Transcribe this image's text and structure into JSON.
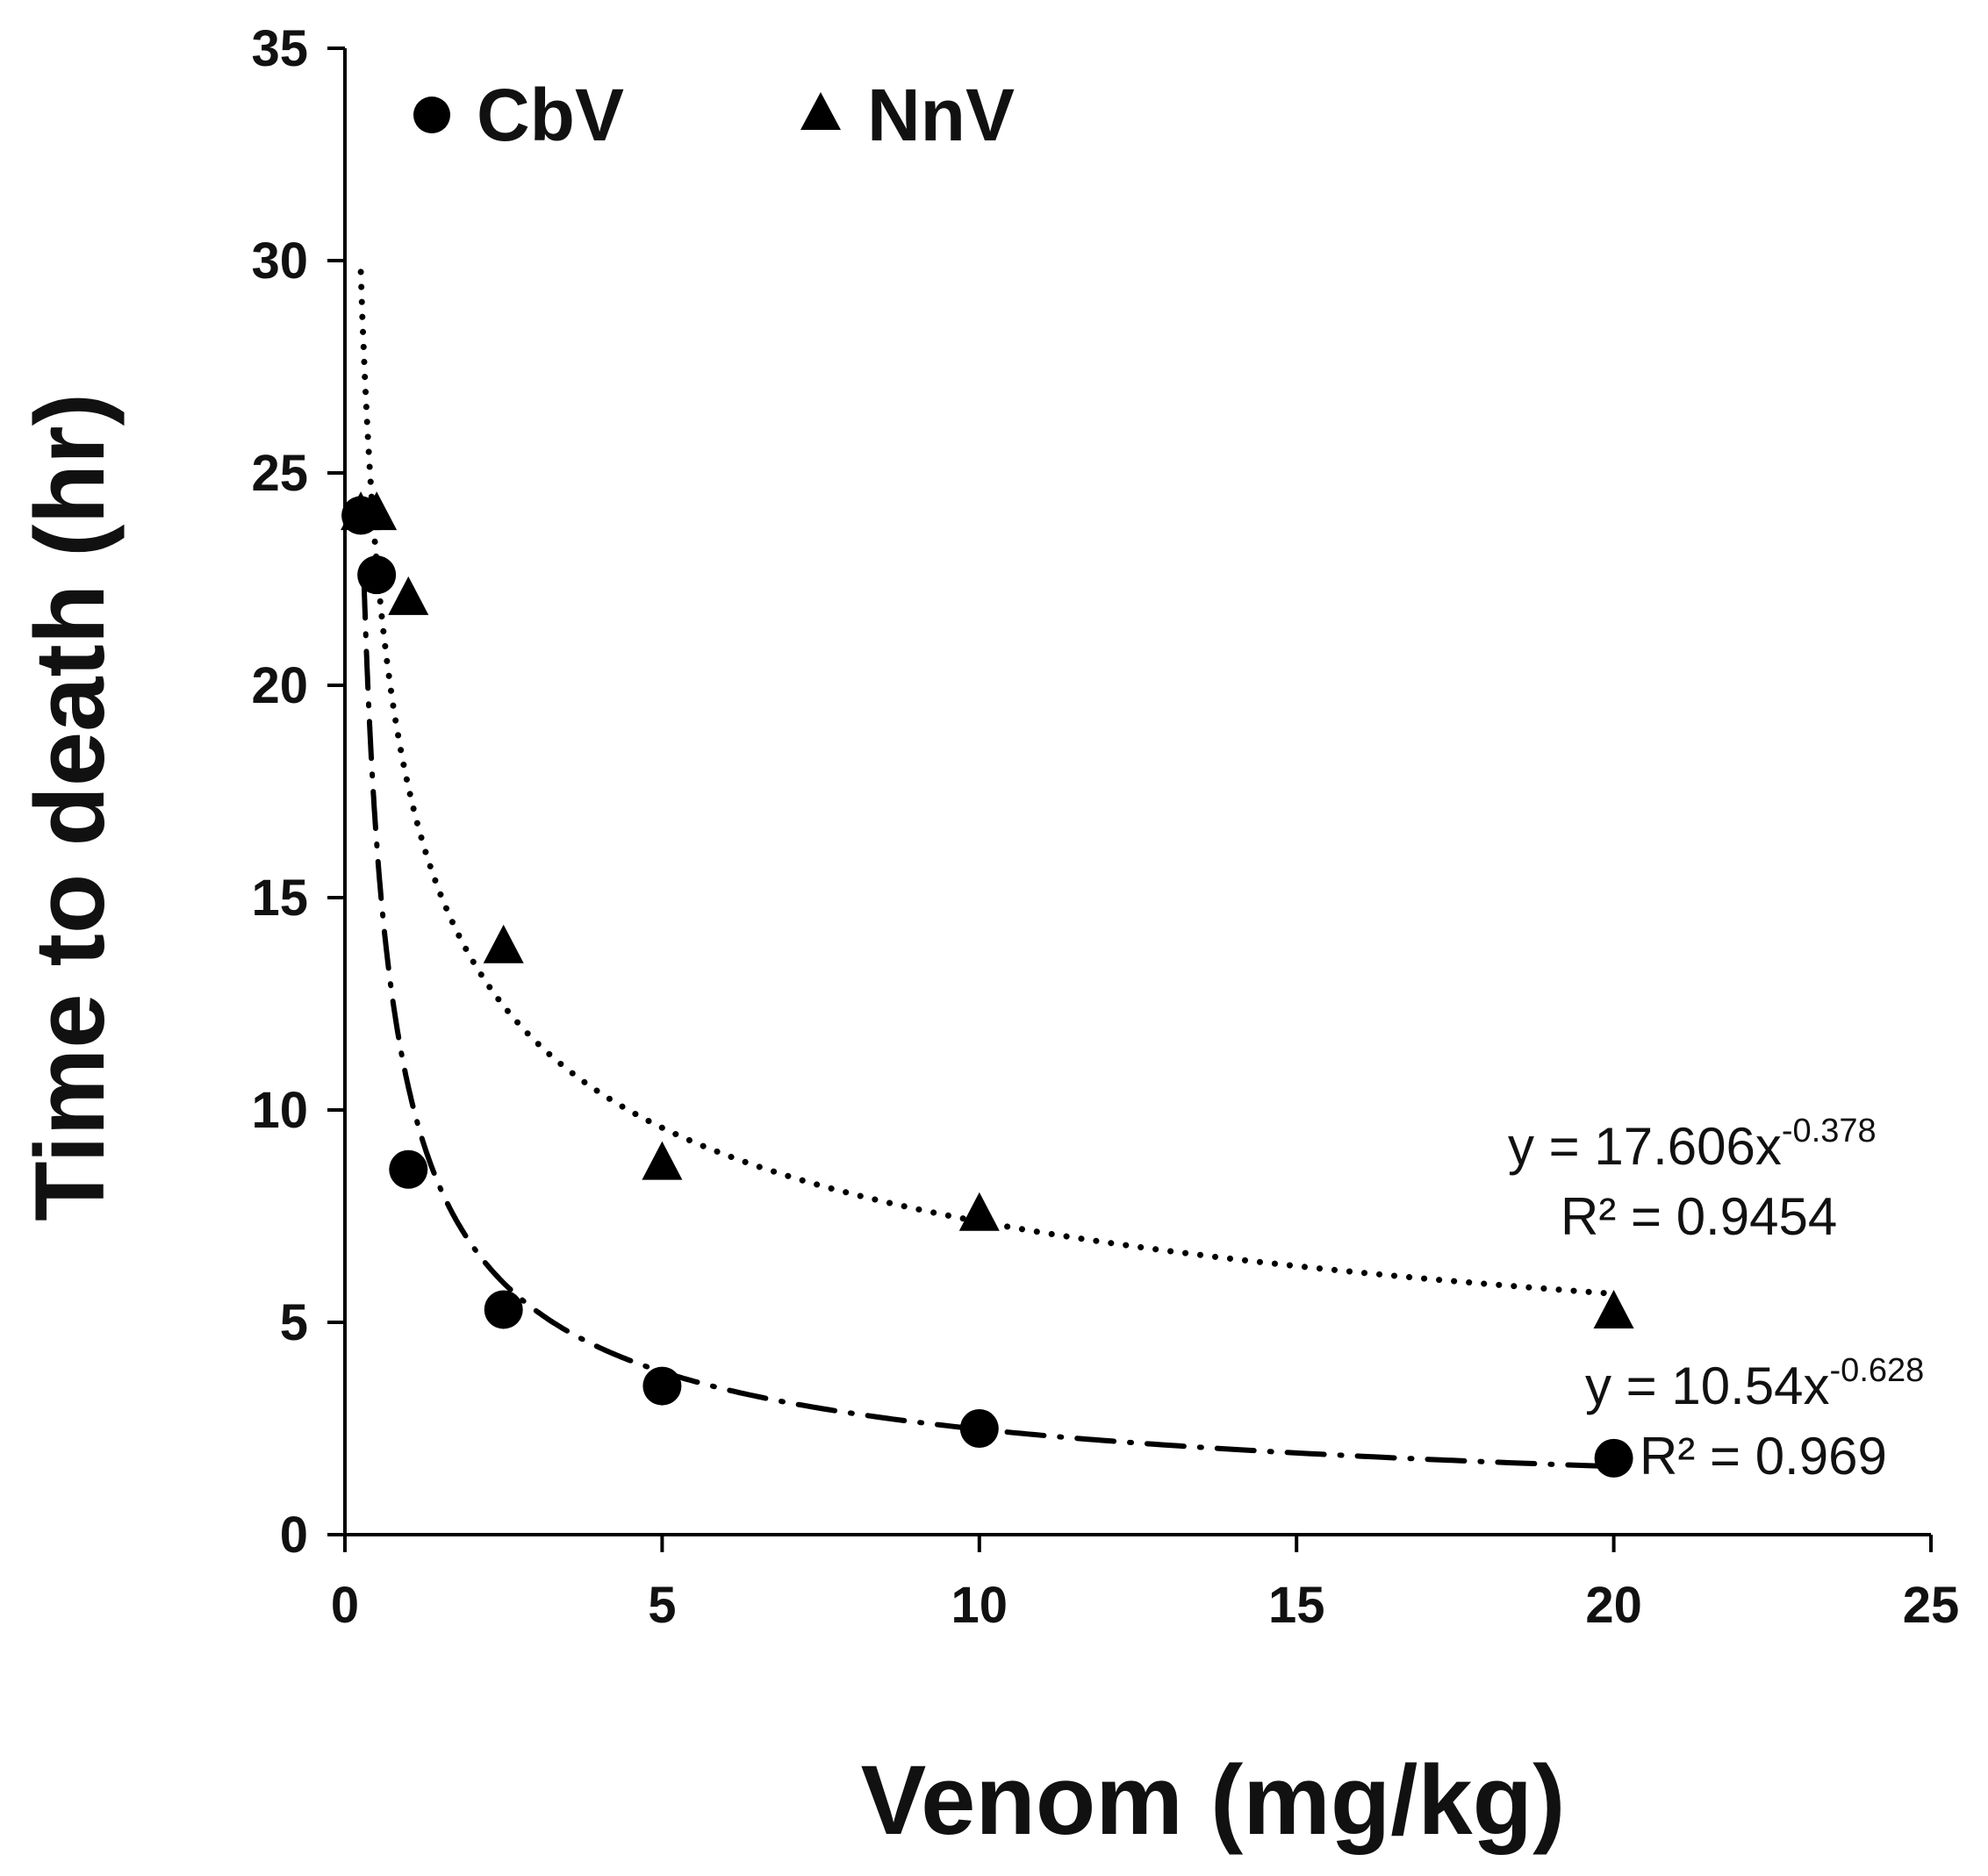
{
  "chart_data": {
    "type": "scatter",
    "title": "",
    "xlabel": "Venom (mg/kg)",
    "ylabel": "Time to death (hr)",
    "xlim": [
      0,
      25
    ],
    "ylim": [
      0,
      35
    ],
    "xticks": [
      0,
      5,
      10,
      15,
      20,
      25
    ],
    "yticks": [
      0,
      5,
      10,
      15,
      20,
      25,
      30,
      35
    ],
    "x_tick_labels": [
      "0",
      "5",
      "10",
      "15",
      "20",
      "25"
    ],
    "y_tick_labels": [
      "0",
      "5",
      "10",
      "15",
      "20",
      "25",
      "30",
      "35"
    ],
    "grid": false,
    "legend_position": "top-left",
    "series": [
      {
        "name": "CbV",
        "marker": "circle",
        "color": "#000000",
        "points": [
          {
            "x": 0.25,
            "y": 24.0
          },
          {
            "x": 0.5,
            "y": 22.6
          },
          {
            "x": 1.0,
            "y": 8.6
          },
          {
            "x": 2.5,
            "y": 5.3
          },
          {
            "x": 5.0,
            "y": 3.5
          },
          {
            "x": 10.0,
            "y": 2.5
          },
          {
            "x": 20.0,
            "y": 1.8
          }
        ],
        "trendline": {
          "kind": "power",
          "a": 10.54,
          "b": -0.628,
          "x_start": 0.3,
          "x_end": 20,
          "style": "dash-dot",
          "equation_prefix": "y = 10.54x",
          "equation_exponent": "-0.628",
          "r_squared_label": "R² = 0.969"
        }
      },
      {
        "name": "NnV",
        "marker": "triangle",
        "color": "#000000",
        "points": [
          {
            "x": 0.25,
            "y": 24.0
          },
          {
            "x": 0.5,
            "y": 24.0
          },
          {
            "x": 1.0,
            "y": 22.0
          },
          {
            "x": 2.5,
            "y": 13.8
          },
          {
            "x": 5.0,
            "y": 8.7
          },
          {
            "x": 10.0,
            "y": 7.5
          },
          {
            "x": 20.0,
            "y": 5.2
          }
        ],
        "trendline": {
          "kind": "power",
          "a": 17.606,
          "b": -0.378,
          "x_start": 0.25,
          "x_end": 20,
          "style": "dotted",
          "equation_prefix": "y = 17.606x",
          "equation_exponent": "-0.378",
          "r_squared_label": "R² = 0.9454"
        }
      }
    ]
  }
}
